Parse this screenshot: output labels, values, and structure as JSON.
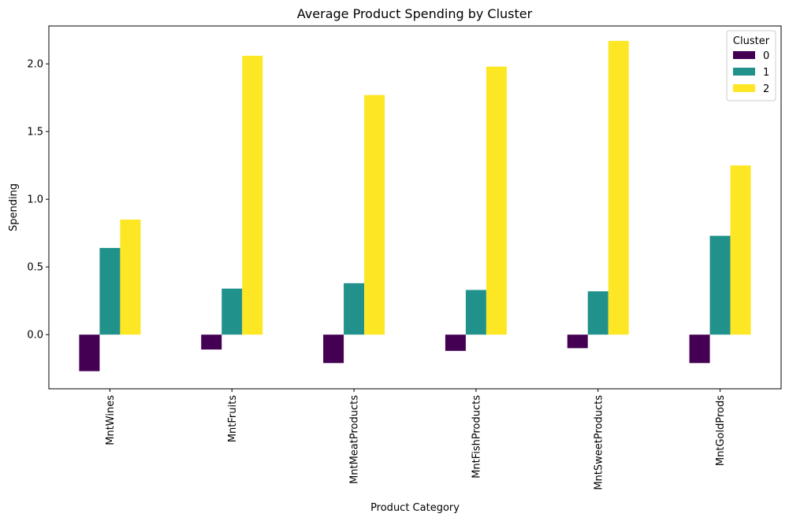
{
  "chart_data": {
    "type": "bar",
    "title": "Average Product Spending by Cluster",
    "xlabel": "Product Category",
    "ylabel": "Spending",
    "categories": [
      "MntWines",
      "MntFruits",
      "MntMeatProducts",
      "MntFishProducts",
      "MntSweetProducts",
      "MntGoldProds"
    ],
    "series": [
      {
        "name": "0",
        "color": "#440154",
        "values": [
          -0.27,
          -0.11,
          -0.21,
          -0.12,
          -0.1,
          -0.21
        ]
      },
      {
        "name": "1",
        "color": "#21918c",
        "values": [
          0.64,
          0.34,
          0.38,
          0.33,
          0.32,
          0.73
        ]
      },
      {
        "name": "2",
        "color": "#fde725",
        "values": [
          0.85,
          2.06,
          1.77,
          1.98,
          2.17,
          1.25
        ]
      }
    ],
    "ylim": [
      -0.4,
      2.28
    ],
    "yticks": [
      0.0,
      0.5,
      1.0,
      1.5,
      2.0
    ],
    "ytick_labels": [
      "0.0",
      "0.5",
      "1.0",
      "1.5",
      "2.0"
    ],
    "legend": {
      "title": "Cluster",
      "placement": "top-right"
    },
    "grid": false
  }
}
